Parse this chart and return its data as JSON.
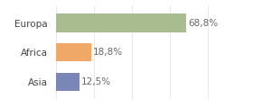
{
  "categories": [
    "Europa",
    "Africa",
    "Asia"
  ],
  "values": [
    68.8,
    18.8,
    12.5
  ],
  "labels": [
    "68,8%",
    "18,8%",
    "12,5%"
  ],
  "bar_colors": [
    "#a8bc8f",
    "#f0a868",
    "#7b86b8"
  ],
  "background_color": "#ffffff",
  "xlim": [
    0,
    88
  ],
  "bar_height": 0.62,
  "label_fontsize": 7.5,
  "category_fontsize": 7.5,
  "label_color": "#666666",
  "category_color": "#444444",
  "grid_color": "#e0e0e0",
  "grid_linewidth": 0.5,
  "figsize": [
    2.8,
    1.2
  ],
  "dpi": 100
}
